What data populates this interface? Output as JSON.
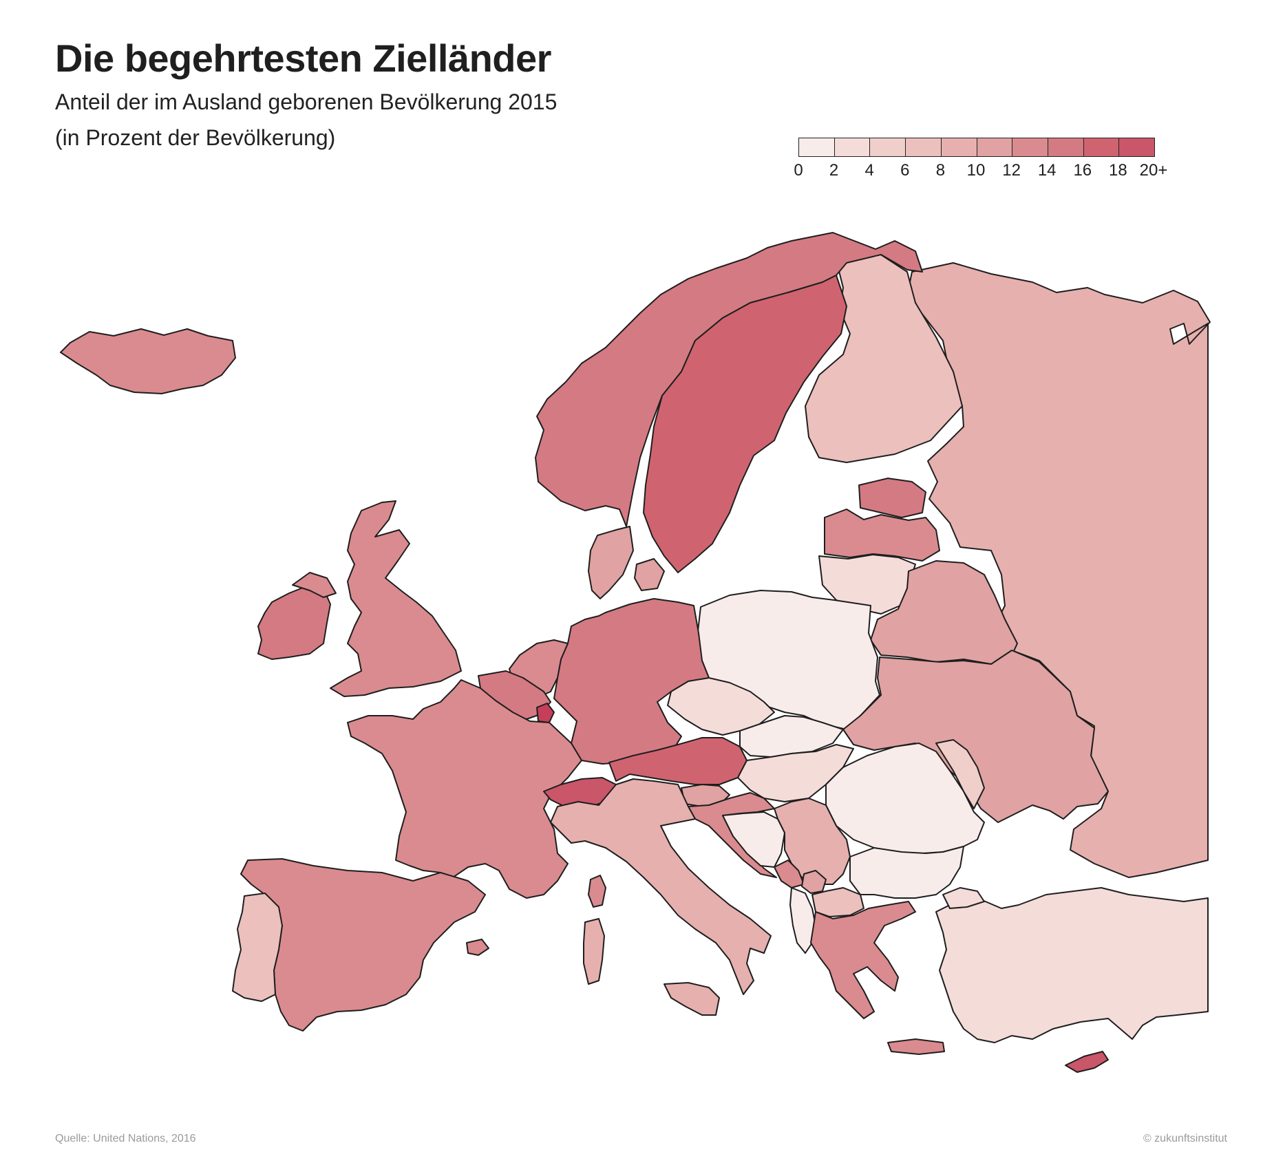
{
  "header": {
    "title": "Die begehrtesten Zielländer",
    "subtitle_line1": "Anteil der im Ausland geborenen Bevölkerung 2015",
    "subtitle_line2": "(in Prozent der Bevölkerung)"
  },
  "legend": {
    "ticks": [
      "0",
      "2",
      "4",
      "6",
      "8",
      "10",
      "12",
      "14",
      "16",
      "18",
      "20+"
    ],
    "colors": [
      "#f8ecea",
      "#f4dcd8",
      "#f0cfcb",
      "#ebc0bd",
      "#e6b0ae",
      "#e0a2a2",
      "#da8b8f",
      "#d47a83",
      "#cf6470",
      "#ca566a",
      "#c63f5a"
    ]
  },
  "footer": {
    "source": "Quelle: United Nations, 2016",
    "copyright": "© zukunftsinstitut"
  },
  "regions": [
    {
      "name": "Iceland",
      "level": 6
    },
    {
      "name": "Norway",
      "level": 7
    },
    {
      "name": "Sweden",
      "level": 8
    },
    {
      "name": "Finland",
      "level": 3
    },
    {
      "name": "Russia",
      "level": 4
    },
    {
      "name": "Estonia",
      "level": 7
    },
    {
      "name": "Latvia",
      "level": 6
    },
    {
      "name": "Lithuania",
      "level": 1
    },
    {
      "name": "Belarus",
      "level": 5
    },
    {
      "name": "Ukraine",
      "level": 5
    },
    {
      "name": "Poland",
      "level": 0
    },
    {
      "name": "Germany",
      "level": 7
    },
    {
      "name": "Denmark",
      "level": 5
    },
    {
      "name": "Netherlands",
      "level": 6
    },
    {
      "name": "Belgium",
      "level": 7
    },
    {
      "name": "Luxembourg",
      "level": 10
    },
    {
      "name": "France",
      "level": 6
    },
    {
      "name": "United Kingdom",
      "level": 6
    },
    {
      "name": "Ireland",
      "level": 7
    },
    {
      "name": "Spain",
      "level": 6
    },
    {
      "name": "Portugal",
      "level": 3
    },
    {
      "name": "Switzerland",
      "level": 9
    },
    {
      "name": "Austria",
      "level": 8
    },
    {
      "name": "Italy",
      "level": 4
    },
    {
      "name": "Czechia",
      "level": 1
    },
    {
      "name": "Slovakia",
      "level": 0
    },
    {
      "name": "Hungary",
      "level": 1
    },
    {
      "name": "Slovenia",
      "level": 5
    },
    {
      "name": "Croatia",
      "level": 6
    },
    {
      "name": "Bosnia and Herzegovina",
      "level": 0
    },
    {
      "name": "Serbia",
      "level": 4
    },
    {
      "name": "Montenegro",
      "level": 6
    },
    {
      "name": "Kosovo",
      "level": 5
    },
    {
      "name": "Albania",
      "level": 0
    },
    {
      "name": "North Macedonia",
      "level": 3
    },
    {
      "name": "Greece",
      "level": 6
    },
    {
      "name": "Romania",
      "level": 0
    },
    {
      "name": "Moldova",
      "level": 2
    },
    {
      "name": "Bulgaria",
      "level": 0
    },
    {
      "name": "Turkey",
      "level": 1
    },
    {
      "name": "Cyprus",
      "level": 9
    }
  ]
}
